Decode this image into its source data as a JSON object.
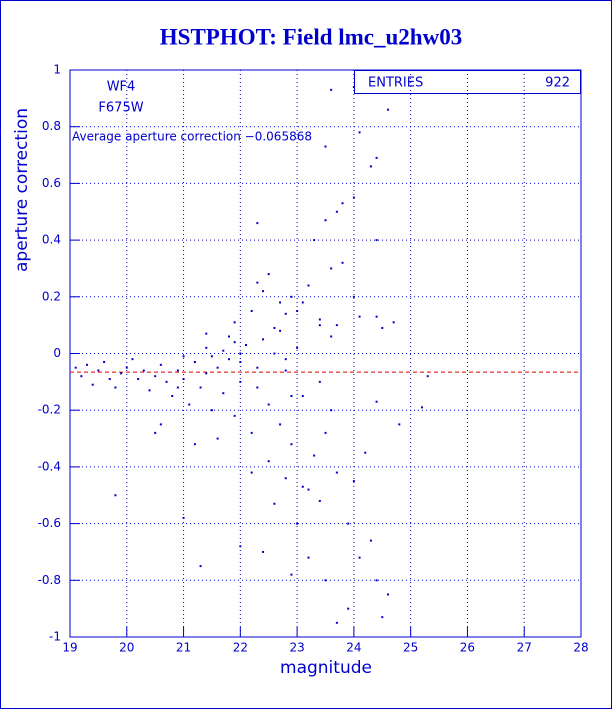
{
  "chart_data": {
    "type": "scatter",
    "title": "HSTPHOT: Field lmc_u2hw03",
    "xlabel": "magnitude",
    "ylabel": "aperture correction",
    "xlim": [
      19,
      28
    ],
    "ylim": [
      -1,
      1
    ],
    "xticks": [
      19,
      20,
      21,
      22,
      23,
      24,
      25,
      26,
      27,
      28
    ],
    "yticks": [
      -1,
      -0.8,
      -0.6,
      -0.4,
      -0.2,
      0,
      0.2,
      0.4,
      0.6,
      0.8,
      1
    ],
    "grid": true,
    "annotations": [
      "WF4",
      "F675W"
    ],
    "average": {
      "value": -0.065868,
      "label": "Average aperture correction −0.065868",
      "color": "#dd0000"
    },
    "stats": {
      "label": "ENTRIES",
      "value": 922
    },
    "series": [
      {
        "color": "#0000cc",
        "x": [
          23.6,
          24.0,
          24.6,
          24.1,
          23.5,
          24.4,
          24.3,
          24.0,
          23.8,
          23.7,
          23.5,
          22.3,
          23.3,
          24.4,
          23.6,
          22.5,
          24.1,
          24.4,
          24.7,
          24.5,
          22.4,
          22.9,
          23.1,
          23.4,
          22.2,
          21.9,
          22.7,
          21.8,
          21.4,
          21.7,
          22.0,
          22.3,
          22.6,
          22.8,
          19.8,
          21.3,
          21.0,
          22.0,
          22.4,
          23.0,
          23.2,
          23.5,
          23.7,
          23.9,
          24.1,
          24.3,
          24.4,
          24.6,
          24.5,
          23.4,
          23.1,
          22.6,
          22.8,
          21.2,
          20.6,
          25.2,
          25.3,
          24.8,
          24.4,
          19.1,
          19.2,
          19.3,
          19.4,
          19.5,
          19.6,
          19.7,
          19.8,
          19.9,
          20.0,
          20.1,
          20.2,
          20.3,
          20.4,
          20.5,
          20.6,
          20.7,
          20.8,
          20.9,
          21.0,
          21.1,
          21.2,
          21.3,
          21.4,
          21.5,
          21.6,
          21.7,
          21.8,
          21.9,
          22.0,
          22.1,
          22.2,
          22.3,
          22.4,
          22.5,
          22.6,
          22.7,
          22.8,
          22.9,
          23.0,
          23.1,
          23.2,
          23.3,
          23.4,
          23.5,
          23.6,
          23.7,
          23.8,
          23.9,
          24.0,
          22.2,
          22.5,
          22.9,
          21.6,
          20.5,
          21.4,
          21.0,
          21.9,
          22.8,
          23.4,
          22.0,
          21.5,
          20.9,
          22.7,
          23.0,
          22.3,
          23.2,
          22.9,
          24.2,
          24.0,
          23.7,
          23.6
        ],
        "y": [
          0.93,
          0.94,
          0.86,
          0.78,
          0.73,
          0.69,
          0.66,
          0.55,
          0.53,
          0.5,
          0.47,
          0.46,
          0.4,
          0.4,
          0.3,
          0.28,
          0.13,
          0.13,
          0.11,
          0.09,
          0.22,
          0.2,
          0.18,
          0.1,
          0.15,
          0.11,
          0.08,
          0.06,
          0.02,
          0.01,
          -0.03,
          -0.05,
          0.0,
          -0.02,
          -0.5,
          -0.75,
          -0.58,
          -0.68,
          -0.7,
          -0.6,
          -0.72,
          -0.8,
          -0.95,
          -0.9,
          -0.72,
          -0.66,
          -0.8,
          -0.85,
          -0.93,
          -0.52,
          -0.47,
          -0.53,
          -0.44,
          -0.32,
          -0.25,
          -0.19,
          -0.08,
          -0.25,
          -0.17,
          -0.05,
          -0.08,
          -0.04,
          -0.11,
          -0.06,
          -0.03,
          -0.09,
          -0.12,
          -0.07,
          -0.05,
          -0.02,
          -0.09,
          -0.06,
          -0.13,
          -0.08,
          -0.04,
          -0.1,
          -0.15,
          -0.06,
          -0.09,
          -0.18,
          -0.03,
          -0.12,
          -0.07,
          -0.2,
          -0.05,
          -0.14,
          -0.02,
          -0.22,
          -0.1,
          0.03,
          -0.28,
          -0.12,
          0.05,
          -0.18,
          0.09,
          -0.25,
          0.14,
          -0.32,
          0.02,
          -0.15,
          0.24,
          -0.36,
          0.12,
          -0.28,
          0.06,
          -0.42,
          0.32,
          -0.6,
          0.2,
          -0.42,
          -0.38,
          -0.15,
          -0.3,
          -0.28,
          0.07,
          -0.01,
          0.04,
          -0.06,
          -0.1,
          0.0,
          -0.01,
          -0.12,
          0.18,
          0.15,
          0.25,
          -0.48,
          -0.78,
          -0.35,
          -0.45,
          0.1,
          -0.2
        ]
      }
    ]
  }
}
